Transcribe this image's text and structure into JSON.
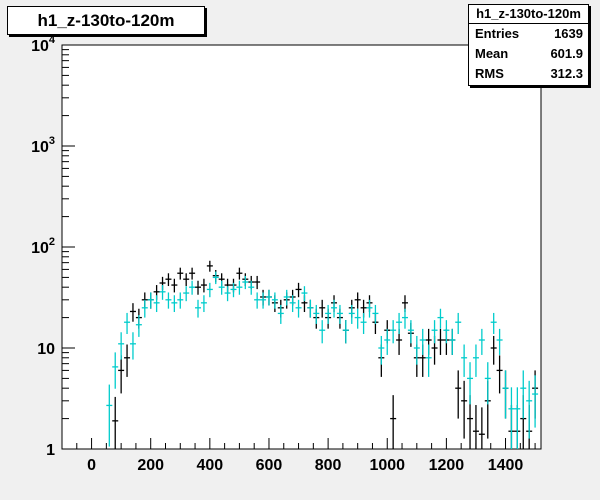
{
  "chart_data": {
    "type": "scatter",
    "title": "h1_z-130to-120m",
    "xlim": [
      -100,
      1520
    ],
    "ylim": [
      1,
      10000
    ],
    "yscale": "log",
    "x_ticks": [
      0,
      200,
      400,
      600,
      800,
      1000,
      1200,
      1400
    ],
    "y_ticks": [
      {
        "value": 1,
        "base": "1",
        "exp": ""
      },
      {
        "value": 10,
        "base": "10",
        "exp": ""
      },
      {
        "value": 100,
        "base": "10",
        "exp": "2"
      },
      {
        "value": 1000,
        "base": "10",
        "exp": "3"
      },
      {
        "value": 10000,
        "base": "10",
        "exp": "4"
      }
    ],
    "stats": {
      "name": "h1_z-130to-120m",
      "rows": [
        {
          "label": "Entries",
          "value": "1639"
        },
        {
          "label": "Mean",
          "value": "601.9"
        },
        {
          "label": "RMS",
          "value": "312.3"
        }
      ]
    },
    "series": [
      {
        "color": "#000000",
        "points": [
          [
            80,
            1.9
          ],
          [
            100,
            6
          ],
          [
            120,
            8
          ],
          [
            140,
            23
          ],
          [
            160,
            20
          ],
          [
            180,
            30
          ],
          [
            200,
            30
          ],
          [
            220,
            36
          ],
          [
            240,
            44
          ],
          [
            260,
            48
          ],
          [
            280,
            42
          ],
          [
            300,
            55
          ],
          [
            320,
            48
          ],
          [
            340,
            55
          ],
          [
            360,
            40
          ],
          [
            380,
            42
          ],
          [
            400,
            65
          ],
          [
            420,
            52
          ],
          [
            440,
            48
          ],
          [
            460,
            42
          ],
          [
            480,
            42
          ],
          [
            500,
            55
          ],
          [
            520,
            48
          ],
          [
            540,
            45
          ],
          [
            560,
            45
          ],
          [
            580,
            32
          ],
          [
            600,
            32
          ],
          [
            620,
            28
          ],
          [
            640,
            25
          ],
          [
            660,
            30
          ],
          [
            680,
            32
          ],
          [
            700,
            38
          ],
          [
            720,
            28
          ],
          [
            740,
            25
          ],
          [
            760,
            20
          ],
          [
            780,
            25
          ],
          [
            800,
            20
          ],
          [
            820,
            28
          ],
          [
            840,
            20
          ],
          [
            860,
            15
          ],
          [
            880,
            25
          ],
          [
            900,
            30
          ],
          [
            920,
            25
          ],
          [
            940,
            28
          ],
          [
            960,
            18
          ],
          [
            980,
            8
          ],
          [
            1000,
            15
          ],
          [
            1020,
            2
          ],
          [
            1040,
            12
          ],
          [
            1060,
            28
          ],
          [
            1080,
            14
          ],
          [
            1100,
            8
          ],
          [
            1120,
            8
          ],
          [
            1140,
            12
          ],
          [
            1160,
            10
          ],
          [
            1180,
            12
          ],
          [
            1200,
            12
          ],
          [
            1220,
            12
          ],
          [
            1240,
            4
          ],
          [
            1260,
            3
          ],
          [
            1280,
            2
          ],
          [
            1300,
            1.5
          ],
          [
            1320,
            1.4
          ],
          [
            1340,
            3
          ],
          [
            1360,
            10
          ],
          [
            1380,
            6
          ],
          [
            1400,
            4
          ],
          [
            1420,
            1.5
          ],
          [
            1440,
            1.5
          ],
          [
            1460,
            2
          ],
          [
            1480,
            1.5
          ],
          [
            1500,
            4
          ]
        ]
      },
      {
        "color": "#00cccc",
        "points": [
          [
            60,
            2.7
          ],
          [
            80,
            6.5
          ],
          [
            100,
            11
          ],
          [
            120,
            18
          ],
          [
            140,
            11
          ],
          [
            160,
            17
          ],
          [
            180,
            25
          ],
          [
            200,
            30
          ],
          [
            220,
            28
          ],
          [
            240,
            36
          ],
          [
            260,
            30
          ],
          [
            280,
            28
          ],
          [
            300,
            30
          ],
          [
            320,
            35
          ],
          [
            340,
            40
          ],
          [
            360,
            25
          ],
          [
            380,
            28
          ],
          [
            400,
            38
          ],
          [
            420,
            50
          ],
          [
            440,
            40
          ],
          [
            460,
            35
          ],
          [
            480,
            38
          ],
          [
            500,
            40
          ],
          [
            520,
            45
          ],
          [
            540,
            40
          ],
          [
            560,
            30
          ],
          [
            580,
            30
          ],
          [
            600,
            32
          ],
          [
            620,
            30
          ],
          [
            640,
            22
          ],
          [
            660,
            32
          ],
          [
            680,
            28
          ],
          [
            700,
            25
          ],
          [
            720,
            35
          ],
          [
            740,
            25
          ],
          [
            760,
            22
          ],
          [
            780,
            15
          ],
          [
            800,
            22
          ],
          [
            820,
            25
          ],
          [
            840,
            22
          ],
          [
            860,
            15
          ],
          [
            880,
            22
          ],
          [
            900,
            20
          ],
          [
            920,
            18
          ],
          [
            940,
            25
          ],
          [
            960,
            22
          ],
          [
            980,
            10
          ],
          [
            1000,
            12
          ],
          [
            1020,
            15
          ],
          [
            1040,
            18
          ],
          [
            1060,
            20
          ],
          [
            1080,
            15
          ],
          [
            1100,
            10
          ],
          [
            1120,
            12
          ],
          [
            1140,
            8
          ],
          [
            1160,
            15
          ],
          [
            1180,
            20
          ],
          [
            1200,
            15
          ],
          [
            1220,
            12
          ],
          [
            1240,
            18
          ],
          [
            1260,
            8
          ],
          [
            1280,
            5
          ],
          [
            1300,
            8
          ],
          [
            1320,
            12
          ],
          [
            1340,
            5
          ],
          [
            1360,
            18
          ],
          [
            1380,
            12
          ],
          [
            1400,
            4
          ],
          [
            1420,
            2.5
          ],
          [
            1440,
            2.5
          ],
          [
            1460,
            4
          ],
          [
            1480,
            3
          ],
          [
            1500,
            3.5
          ]
        ]
      }
    ]
  }
}
